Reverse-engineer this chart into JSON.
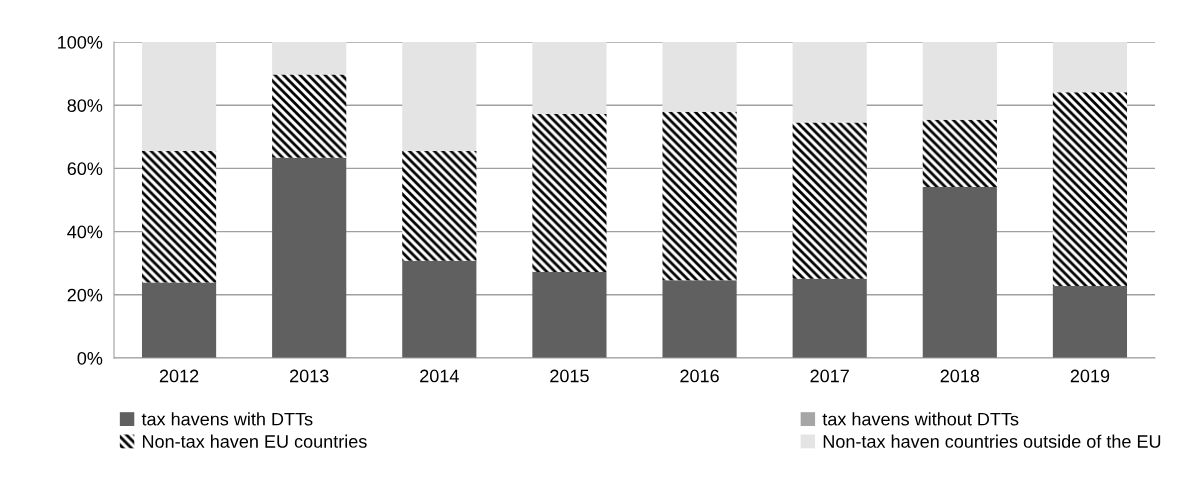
{
  "chart_data": {
    "type": "bar",
    "stacked": true,
    "categories": [
      "2012",
      "2013",
      "2014",
      "2015",
      "2016",
      "2017",
      "2018",
      "2019"
    ],
    "series": [
      {
        "name": "tax havens with DTTs",
        "color": "#606060",
        "values": [
          23.9,
          63.4,
          30.8,
          27.2,
          24.6,
          25.1,
          54.1,
          22.8
        ]
      },
      {
        "name": "tax havens without DTTs",
        "color": "#a6a6a6",
        "values": [
          0,
          0,
          0,
          0,
          0,
          0,
          0,
          0
        ]
      },
      {
        "name": "Non-tax haven EU countries",
        "color": "#000000",
        "values": [
          41.6,
          26.3,
          34.7,
          50.0,
          53.3,
          49.4,
          21.3,
          61.3
        ]
      },
      {
        "name": "Non-tax haven countries outside of the EU",
        "color": "#e4e4e4",
        "values": [
          34.5,
          10.3,
          34.5,
          22.8,
          22.1,
          25.5,
          24.6,
          15.9
        ]
      }
    ],
    "ylim": [
      0,
      100
    ],
    "yticks": [
      {
        "value": 0,
        "label": "0%"
      },
      {
        "value": 20,
        "label": "20%"
      },
      {
        "value": 40,
        "label": "40%"
      },
      {
        "value": 60,
        "label": "60%"
      },
      {
        "value": 80,
        "label": "80%"
      },
      {
        "value": 100,
        "label": "100%"
      }
    ],
    "grid": "y",
    "legend": "bottom"
  }
}
